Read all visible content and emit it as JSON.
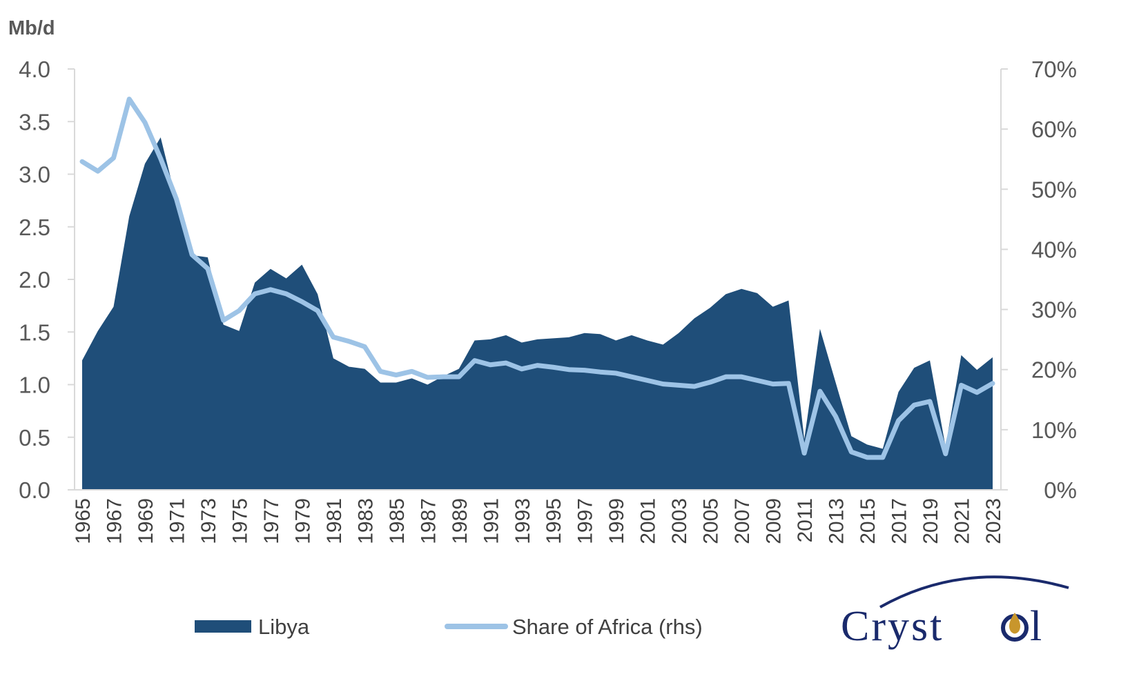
{
  "chart_data": {
    "type": "area+line",
    "y_unit_label": "Mb/d",
    "ylim_left": [
      0,
      4.0
    ],
    "yticks_left": [
      "0.0",
      "0.5",
      "1.0",
      "1.5",
      "2.0",
      "2.5",
      "3.0",
      "3.5",
      "4.0"
    ],
    "ylim_right": [
      0,
      70
    ],
    "yticks_right": [
      "0%",
      "10%",
      "20%",
      "30%",
      "40%",
      "50%",
      "60%",
      "70%"
    ],
    "x": [
      1965,
      1966,
      1967,
      1968,
      1969,
      1970,
      1971,
      1972,
      1973,
      1974,
      1975,
      1976,
      1977,
      1978,
      1979,
      1980,
      1981,
      1982,
      1983,
      1984,
      1985,
      1986,
      1987,
      1988,
      1989,
      1990,
      1991,
      1992,
      1993,
      1994,
      1995,
      1996,
      1997,
      1998,
      1999,
      2000,
      2001,
      2002,
      2003,
      2004,
      2005,
      2006,
      2007,
      2008,
      2009,
      2010,
      2011,
      2012,
      2013,
      2014,
      2015,
      2016,
      2017,
      2018,
      2019,
      2020,
      2021,
      2022,
      2023
    ],
    "xtick_labels": [
      "1965",
      "1967",
      "1969",
      "1971",
      "1973",
      "1975",
      "1977",
      "1979",
      "1981",
      "1983",
      "1985",
      "1987",
      "1989",
      "1991",
      "1993",
      "1995",
      "1997",
      "1999",
      "2001",
      "2003",
      "2005",
      "2007",
      "2009",
      "2011",
      "2013",
      "2015",
      "2017",
      "2019",
      "2021",
      "2023"
    ],
    "grid": false,
    "legend_position": "bottom",
    "series": [
      {
        "name": "Libya",
        "type": "area",
        "axis": "left",
        "color": "#1f4e79",
        "values": [
          1.23,
          1.51,
          1.74,
          2.6,
          3.1,
          3.35,
          2.75,
          2.23,
          2.21,
          1.57,
          1.51,
          1.97,
          2.1,
          2.01,
          2.14,
          1.86,
          1.25,
          1.17,
          1.15,
          1.02,
          1.02,
          1.06,
          1.0,
          1.08,
          1.15,
          1.42,
          1.43,
          1.47,
          1.4,
          1.43,
          1.44,
          1.45,
          1.49,
          1.48,
          1.42,
          1.47,
          1.42,
          1.38,
          1.49,
          1.63,
          1.73,
          1.86,
          1.91,
          1.87,
          1.74,
          1.8,
          0.48,
          1.53,
          1.02,
          0.51,
          0.43,
          0.39,
          0.93,
          1.16,
          1.23,
          0.41,
          1.28,
          1.14,
          1.26
        ]
      },
      {
        "name": "Share of Africa (rhs)",
        "type": "line",
        "axis": "right",
        "color": "#9dc3e6",
        "values": [
          54.6,
          53.0,
          55.2,
          65.0,
          61.1,
          55.1,
          48.4,
          39.1,
          36.8,
          28.2,
          29.8,
          32.6,
          33.3,
          32.6,
          31.3,
          29.8,
          25.4,
          24.7,
          23.8,
          19.7,
          19.1,
          19.7,
          18.7,
          18.8,
          18.8,
          21.5,
          20.8,
          21.1,
          20.1,
          20.7,
          20.4,
          20.0,
          19.9,
          19.6,
          19.4,
          18.8,
          18.2,
          17.6,
          17.4,
          17.2,
          17.9,
          18.8,
          18.8,
          18.2,
          17.6,
          17.7,
          6.1,
          16.4,
          12.2,
          6.3,
          5.4,
          5.4,
          11.5,
          14.1,
          14.7,
          6.0,
          17.4,
          16.2,
          17.7
        ]
      }
    ]
  },
  "logo": {
    "text": "Crystol"
  }
}
